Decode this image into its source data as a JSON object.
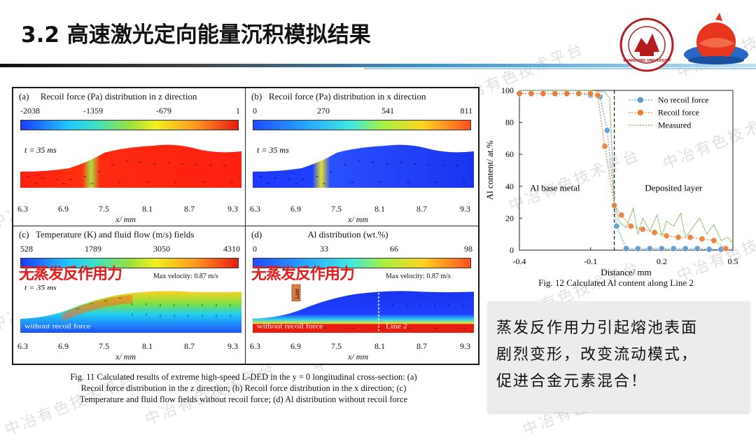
{
  "slide": {
    "title": "3.2 高速激光定向能量沉积模拟结果"
  },
  "watermark": {
    "text": "中冶有色技术平台"
  },
  "fig11": {
    "panels": [
      {
        "id": "a",
        "label": "(a)",
        "title": "Recoil force (Pa) distribution in z direction",
        "colorbar": [
          "-2038",
          "-1359",
          "-679",
          "1"
        ],
        "time": "t = 35 ms",
        "x_ticks": [
          "6.3",
          "6.9",
          "7.5",
          "8.1",
          "8.7",
          "9.3"
        ],
        "x_label": "x/ mm"
      },
      {
        "id": "b",
        "label": "(b)",
        "title": "Recoil force (Pa) distribution in x direction",
        "colorbar": [
          "0",
          "270",
          "541",
          "811"
        ],
        "time": "t = 35 ms",
        "x_ticks": [
          "6.3",
          "6.9",
          "7.5",
          "8.1",
          "8.7",
          "9.3"
        ],
        "x_label": "x/ mm"
      },
      {
        "id": "c",
        "label": "(c)",
        "title": "Temperature (K) and fluid flow (m/s) fields",
        "colorbar": [
          "528",
          "1789",
          "3050",
          "4310"
        ],
        "time": "t = 35 ms",
        "overlay_cn": "无蒸发反作用力",
        "max_velocity": "Max velocity: 0.87 m/s",
        "note": "without recoil force",
        "x_ticks": [
          "6.3",
          "6.9",
          "7.5",
          "8.1",
          "8.7",
          "9.3"
        ],
        "x_label": "x/ mm"
      },
      {
        "id": "d",
        "label": "(d)",
        "title": "Al distribution (wt.%)",
        "colorbar": [
          "0",
          "33",
          "66",
          "98"
        ],
        "overlay_cn": "无蒸发反作用力",
        "max_velocity": "Max velocity: 0.87 m/s",
        "note": "without recoil force",
        "laser_label": "Laser",
        "line_label": "Line 2",
        "x_ticks": [
          "6.3",
          "6.9",
          "7.5",
          "8.1",
          "8.7",
          "9.3"
        ],
        "x_label": "x/ mm"
      }
    ],
    "caption_lines": [
      "Fig. 11 Calculated results of extreme high-speed L-DED in the y = 0 longitudinal cross-section: (a)",
      "Recoil force distribution in the z direction; (b) Recoil force distribution in the x direction; (c)",
      "Temperature and fluid flow fields without recoil force; (d) Al distribution without recoil force"
    ]
  },
  "chart_data": {
    "type": "line",
    "title": "Fig. 12 Calculated Al content along Line 2",
    "xlabel": "Distance/ mm",
    "ylabel": "Al content/ at.%",
    "xlim": [
      -0.4,
      0.5
    ],
    "ylim": [
      0,
      100
    ],
    "x_ticks": [
      "-0.4",
      "-0.1",
      "0.2",
      "0.5"
    ],
    "y_ticks": [
      "0",
      "20",
      "40",
      "60",
      "80",
      "100"
    ],
    "region_labels": [
      "Al base metal",
      "Deposited layer"
    ],
    "interface_x": 0.0,
    "legend_position": "top-right",
    "series": [
      {
        "name": "No recoil force",
        "color": "#5b9bd5",
        "marker": "circle",
        "x": [
          -0.4,
          -0.35,
          -0.3,
          -0.25,
          -0.2,
          -0.15,
          -0.1,
          -0.06,
          -0.03,
          0.01,
          0.05,
          0.1,
          0.15,
          0.2,
          0.25,
          0.3,
          0.35,
          0.4,
          0.45
        ],
        "y": [
          98,
          98,
          98,
          98,
          98,
          98,
          97,
          96,
          75,
          15,
          1,
          1,
          1,
          1,
          1,
          1,
          1,
          0.5,
          0.5
        ]
      },
      {
        "name": "Recoil force",
        "color": "#ed7d31",
        "marker": "circle",
        "x": [
          -0.4,
          -0.35,
          -0.3,
          -0.25,
          -0.2,
          -0.15,
          -0.1,
          -0.07,
          -0.04,
          0.0,
          0.03,
          0.07,
          0.12,
          0.17,
          0.22,
          0.27,
          0.32,
          0.37,
          0.42,
          0.47
        ],
        "y": [
          98,
          98,
          98,
          98,
          98,
          98,
          98,
          97,
          65,
          28,
          22,
          15,
          13,
          11,
          9,
          8,
          8,
          7,
          6,
          1
        ]
      },
      {
        "name": "Measured",
        "color": "#70ad47",
        "marker": "none",
        "x": [
          -0.4,
          -0.1,
          -0.04,
          -0.02,
          0.0,
          0.02,
          0.05,
          0.08,
          0.1,
          0.12,
          0.15,
          0.18,
          0.2,
          0.22,
          0.25,
          0.28,
          0.3,
          0.33,
          0.36,
          0.39,
          0.42,
          0.45,
          0.48,
          0.5
        ],
        "y": [
          100,
          100,
          99,
          95,
          30,
          18,
          14,
          26,
          10,
          20,
          12,
          22,
          9,
          18,
          15,
          23,
          8,
          14,
          20,
          10,
          16,
          6,
          8,
          4
        ]
      }
    ]
  },
  "summary": {
    "lines": [
      "蒸发反作用力引起熔池表面",
      "剧烈变形，改变流动模式，",
      "促进合金元素混合！"
    ]
  },
  "logo": {
    "university": "SHANDONG UNIVERSITY",
    "year": "1901"
  }
}
